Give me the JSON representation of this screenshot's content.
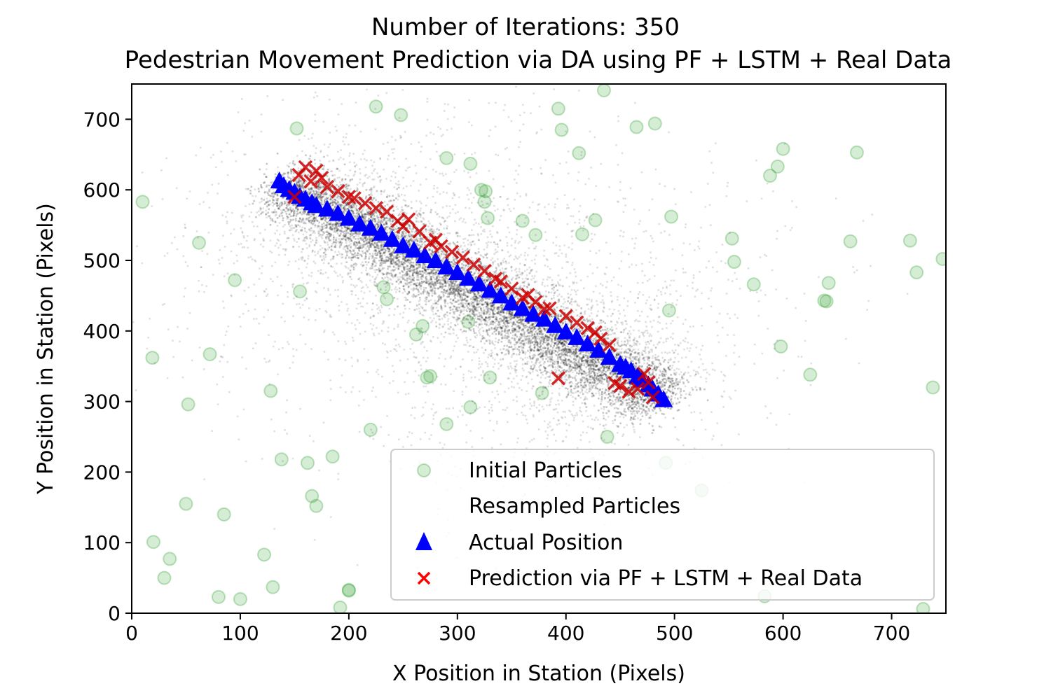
{
  "chart_data": {
    "type": "scatter",
    "title": "Number of Iterations: 350",
    "subtitle": "Pedestrian Movement Prediction via DA using PF + LSTM + Real Data",
    "xlabel": "X Position in Station (Pixels)",
    "ylabel": "Y Position in Station (Pixels)",
    "xlim": [
      0,
      750
    ],
    "ylim": [
      0,
      750
    ],
    "x_ticks": [
      0,
      100,
      200,
      300,
      400,
      500,
      600,
      700
    ],
    "y_ticks": [
      0,
      100,
      200,
      300,
      400,
      500,
      600,
      700
    ],
    "grid": false,
    "legend_position": "lower-right",
    "colors": {
      "initial": "#2ca02c",
      "resampled": "#000000",
      "actual": "#0000ff",
      "prediction": "#ff0000"
    },
    "series": [
      {
        "name": "Initial Particles",
        "marker": "circle",
        "x": [
          10,
          19,
          20,
          30,
          35,
          50,
          52,
          62,
          72,
          80,
          85,
          95,
          100,
          122,
          128,
          130,
          138,
          152,
          155,
          162,
          166,
          170,
          185,
          192,
          200,
          200,
          220,
          225,
          232,
          235,
          248,
          262,
          268,
          272,
          275,
          290,
          290,
          310,
          312,
          312,
          322,
          325,
          326,
          328,
          330,
          360,
          372,
          378,
          393,
          396,
          412,
          415,
          427,
          435,
          438,
          465,
          482,
          492,
          495,
          497,
          525,
          553,
          555,
          573,
          583,
          588,
          595,
          598,
          600,
          625,
          638,
          640,
          642,
          662,
          668,
          717,
          723,
          729,
          738,
          747
        ],
        "y": [
          583,
          362,
          101,
          50,
          77,
          155,
          296,
          525,
          367,
          23,
          140,
          472,
          20,
          83,
          315,
          37,
          218,
          687,
          456,
          213,
          166,
          152,
          222,
          8,
          33,
          32,
          260,
          718,
          462,
          445,
          706,
          395,
          407,
          334,
          336,
          268,
          645,
          413,
          292,
          637,
          600,
          583,
          598,
          560,
          334,
          556,
          536,
          312,
          715,
          685,
          652,
          537,
          557,
          741,
          250,
          689,
          694,
          213,
          429,
          562,
          174,
          531,
          498,
          466,
          24,
          620,
          633,
          378,
          658,
          338,
          443,
          442,
          468,
          527,
          653,
          528,
          483,
          6,
          320,
          502
        ]
      },
      {
        "name": "Resampled Particles",
        "marker": "dot",
        "band": {
          "x_start": 140,
          "y_start": 610,
          "x_end": 490,
          "y_end": 300,
          "count": 9000
        },
        "scatter_count": 2200
      },
      {
        "name": "Actual Position",
        "marker": "triangle",
        "x": [
          136,
          140,
          145,
          150,
          155,
          160,
          166,
          170,
          180,
          190,
          200,
          210,
          220,
          230,
          240,
          250,
          260,
          270,
          280,
          290,
          300,
          310,
          320,
          330,
          340,
          350,
          360,
          370,
          380,
          390,
          400,
          410,
          420,
          430,
          440,
          450,
          455,
          460,
          466,
          470,
          476,
          480,
          485,
          490
        ],
        "y": [
          612,
          605,
          600,
          596,
          590,
          586,
          581,
          577,
          572,
          566,
          559,
          551,
          545,
          538,
          529,
          520,
          514,
          506,
          499,
          490,
          482,
          474,
          466,
          457,
          449,
          439,
          431,
          423,
          416,
          407,
          398,
          390,
          381,
          372,
          362,
          352,
          348,
          343,
          335,
          330,
          323,
          317,
          310,
          302
        ]
      },
      {
        "name": "Prediction via PF + LSTM + Real Data",
        "marker": "x",
        "x": [
          150,
          154,
          160,
          165,
          170,
          175,
          180,
          190,
          200,
          205,
          215,
          225,
          235,
          245,
          250,
          255,
          265,
          275,
          280,
          285,
          295,
          305,
          315,
          325,
          335,
          340,
          350,
          360,
          365,
          372,
          380,
          385,
          393,
          400,
          410,
          420,
          427,
          432,
          440,
          445,
          450,
          458,
          466,
          472,
          476,
          480
        ],
        "y": [
          590,
          621,
          632,
          612,
          627,
          617,
          604,
          598,
          590,
          588,
          581,
          574,
          569,
          556,
          548,
          558,
          541,
          525,
          529,
          520,
          512,
          504,
          494,
          485,
          474,
          470,
          460,
          447,
          451,
          441,
          431,
          432,
          333,
          421,
          412,
          404,
          398,
          389,
          380,
          326,
          322,
          314,
          318,
          339,
          327,
          306
        ]
      }
    ]
  }
}
